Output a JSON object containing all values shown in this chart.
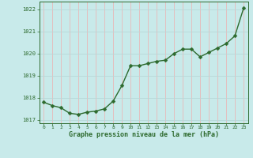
{
  "x": [
    0,
    1,
    2,
    3,
    4,
    5,
    6,
    7,
    8,
    9,
    10,
    11,
    12,
    13,
    14,
    15,
    16,
    17,
    18,
    19,
    20,
    21,
    22,
    23
  ],
  "y": [
    1017.8,
    1017.65,
    1017.55,
    1017.3,
    1017.25,
    1017.35,
    1017.4,
    1017.5,
    1017.85,
    1018.55,
    1019.45,
    1019.45,
    1019.55,
    1019.65,
    1019.7,
    1020.0,
    1020.2,
    1020.2,
    1019.85,
    1020.05,
    1020.25,
    1020.45,
    1020.8,
    1022.05
  ],
  "line_color": "#2d6a2d",
  "marker_color": "#2d6a2d",
  "bg_color": "#c8eaea",
  "grid_color_h": "#b8d8d8",
  "grid_color_v": "#e8b8b8",
  "axis_label_color": "#2d6a2d",
  "tick_label_color": "#2d6a2d",
  "xlabel": "Graphe pression niveau de la mer (hPa)",
  "ylim": [
    1016.85,
    1022.35
  ],
  "yticks": [
    1017,
    1018,
    1019,
    1020,
    1021,
    1022
  ],
  "xticks": [
    0,
    1,
    2,
    3,
    4,
    5,
    6,
    7,
    8,
    9,
    10,
    11,
    12,
    13,
    14,
    15,
    16,
    17,
    18,
    19,
    20,
    21,
    22,
    23
  ],
  "marker_size": 2.5,
  "line_width": 1.0
}
